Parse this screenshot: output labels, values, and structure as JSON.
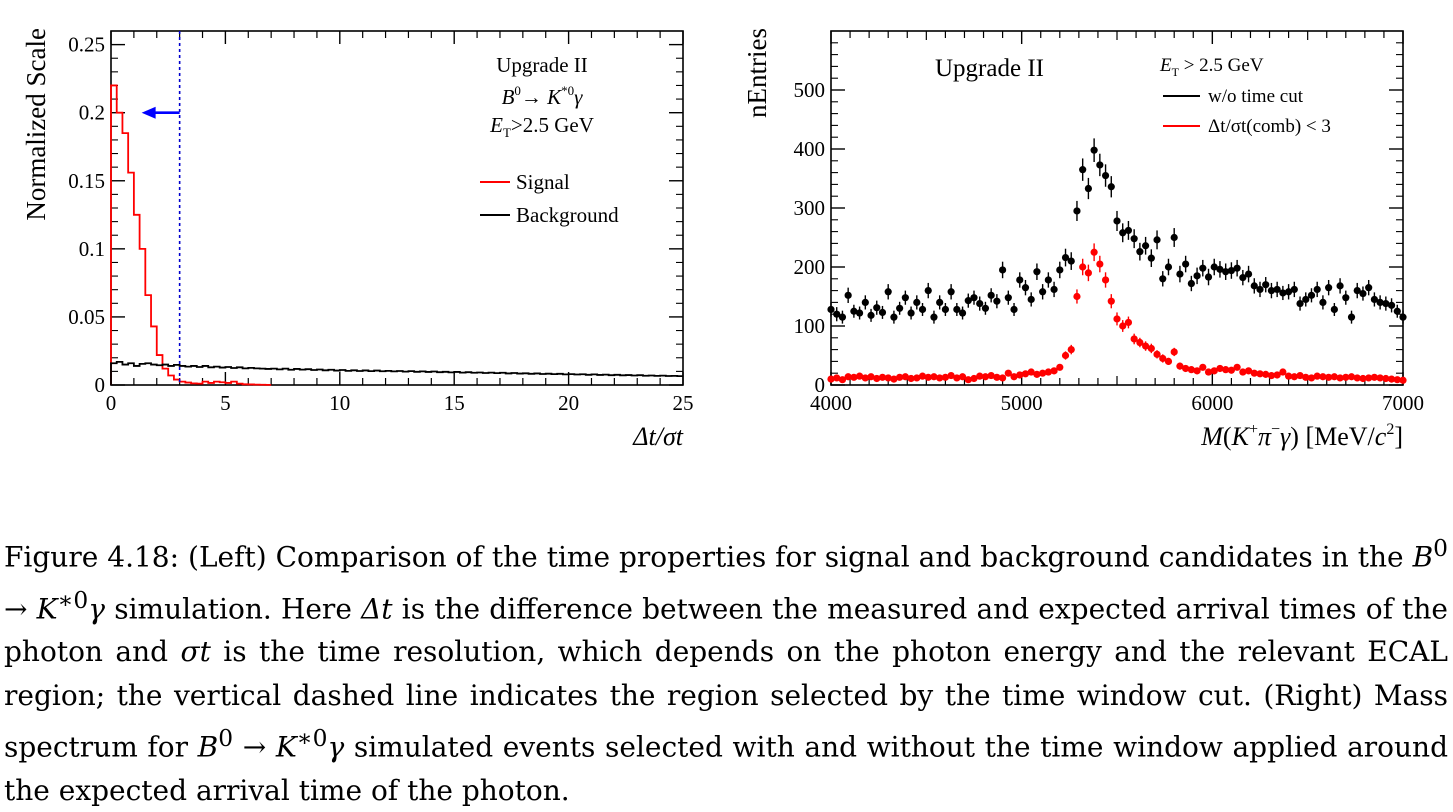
{
  "chart_data": [
    {
      "type": "histogram",
      "title": "",
      "annotations": {
        "line1": "Upgrade II",
        "line2_base": "B",
        "line2_sup": "0",
        "line2_arrow": "→ ",
        "line2_k": "K",
        "line2_ksup": "*0",
        "line2_gamma": "γ",
        "line3_base": "E",
        "line3_sub": "T",
        "line3_rest": ">2.5 GeV"
      },
      "xlabel": "Δt/σt",
      "ylabel": "Normalized Scale",
      "xlim": [
        0,
        25
      ],
      "ylim": [
        0,
        0.26
      ],
      "x_ticks": [
        0,
        5,
        10,
        15,
        20,
        25
      ],
      "x_tick_labels": [
        "0",
        "5",
        "10",
        "15",
        "20",
        "25"
      ],
      "y_ticks": [
        0,
        0.05,
        0.1,
        0.15,
        0.2,
        0.25
      ],
      "y_tick_labels": [
        "0",
        "0.05",
        "0.1",
        "0.15",
        "0.2",
        "0.25"
      ],
      "bin_width": 0.25,
      "cut_value": 3,
      "arrow_y": 0.2,
      "legend": [
        {
          "name": "Signal",
          "color": "#ff0000"
        },
        {
          "name": "Background",
          "color": "#000000"
        }
      ],
      "series": [
        {
          "name": "Signal",
          "color": "#ff0000",
          "values": [
            0.22,
            0.2,
            0.185,
            0.156,
            0.125,
            0.1,
            0.066,
            0.043,
            0.022,
            0.012,
            0.007,
            0.004,
            0.0025,
            0.0018,
            0.0012,
            0.001,
            0.0025,
            0.0015,
            0.0025,
            0.002,
            0.0015,
            0.0025,
            0.001,
            0.0005,
            0.0004,
            0.0003,
            0.0002,
            0.0001
          ]
        },
        {
          "name": "Background",
          "color": "#000000",
          "values": [
            0.016,
            0.017,
            0.015,
            0.016,
            0.014,
            0.0155,
            0.016,
            0.015,
            0.0145,
            0.015,
            0.014,
            0.0148,
            0.014,
            0.0135,
            0.014,
            0.0132,
            0.014,
            0.013,
            0.0135,
            0.0128,
            0.0132,
            0.0125,
            0.013,
            0.0122,
            0.0126,
            0.0122,
            0.012,
            0.0118,
            0.012,
            0.0115,
            0.012,
            0.0112,
            0.0118,
            0.0113,
            0.0116,
            0.011,
            0.0114,
            0.0108,
            0.0112,
            0.0106,
            0.011,
            0.0104,
            0.0108,
            0.0103,
            0.0107,
            0.0102,
            0.0106,
            0.0101,
            0.0104,
            0.01,
            0.0103,
            0.0098,
            0.0102,
            0.0097,
            0.01,
            0.0096,
            0.0099,
            0.0094,
            0.0097,
            0.0093,
            0.0096,
            0.0091,
            0.0094,
            0.009,
            0.0092,
            0.0088,
            0.0091,
            0.0087,
            0.009,
            0.0085,
            0.0088,
            0.0084,
            0.0086,
            0.0082,
            0.0085,
            0.0081,
            0.0083,
            0.008,
            0.0082,
            0.0078,
            0.008,
            0.0077,
            0.0079,
            0.0075,
            0.0078,
            0.0074,
            0.0076,
            0.0072,
            0.0075,
            0.0071,
            0.0073,
            0.007,
            0.0072,
            0.0068,
            0.007,
            0.0067,
            0.0069,
            0.0066,
            0.0067,
            0.0065
          ]
        }
      ]
    },
    {
      "type": "scatter",
      "title": "",
      "annotations": {
        "upgrade": "Upgrade II",
        "et_base": "E",
        "et_sub": "T",
        "et_rest": " > 2.5 GeV"
      },
      "xlabel_parts": {
        "m": "M",
        "open": "(",
        "k": "K",
        "kplus": "+",
        "pi": "π",
        "piminus": "−",
        "gamma": "γ",
        "close": ")",
        "units": " [MeV/",
        "c": "c",
        "csq": "2",
        "end": "]"
      },
      "ylabel": "nEntries",
      "xlim": [
        4000,
        7000
      ],
      "ylim": [
        0,
        600
      ],
      "x_ticks": [
        4000,
        5000,
        6000,
        7000
      ],
      "x_tick_labels": [
        "4000",
        "5000",
        "6000",
        "7000"
      ],
      "y_ticks": [
        0,
        100,
        200,
        300,
        400,
        500
      ],
      "y_tick_labels": [
        "0",
        "100",
        "200",
        "300",
        "400",
        "500"
      ],
      "legend": [
        {
          "name": "w/o time cut",
          "color": "#000000"
        },
        {
          "name": "Δt/σt(comb) < 3",
          "color": "#ff0000"
        }
      ],
      "x": [
        4000,
        4030,
        4060,
        4090,
        4120,
        4150,
        4180,
        4210,
        4240,
        4270,
        4300,
        4330,
        4360,
        4390,
        4420,
        4450,
        4480,
        4510,
        4540,
        4570,
        4600,
        4630,
        4660,
        4690,
        4720,
        4750,
        4780,
        4810,
        4840,
        4870,
        4900,
        4930,
        4960,
        4990,
        5020,
        5050,
        5080,
        5110,
        5140,
        5170,
        5200,
        5230,
        5260,
        5290,
        5320,
        5350,
        5380,
        5410,
        5440,
        5470,
        5500,
        5530,
        5560,
        5590,
        5620,
        5650,
        5680,
        5710,
        5740,
        5770,
        5800,
        5830,
        5860,
        5890,
        5920,
        5950,
        5980,
        6010,
        6040,
        6070,
        6100,
        6130,
        6160,
        6190,
        6220,
        6250,
        6280,
        6310,
        6340,
        6370,
        6400,
        6430,
        6460,
        6490,
        6520,
        6550,
        6580,
        6610,
        6640,
        6670,
        6700,
        6730,
        6760,
        6790,
        6820,
        6850,
        6880,
        6910,
        6940,
        6970,
        7000
      ],
      "series": [
        {
          "name": "w/o time cut",
          "color": "#000000",
          "values": [
            128,
            120,
            115,
            152,
            125,
            122,
            140,
            118,
            131,
            123,
            158,
            115,
            130,
            148,
            122,
            140,
            128,
            160,
            115,
            140,
            128,
            158,
            128,
            122,
            143,
            148,
            138,
            130,
            152,
            142,
            195,
            148,
            128,
            178,
            165,
            145,
            192,
            158,
            178,
            162,
            195,
            216,
            210,
            295,
            365,
            333,
            398,
            373,
            355,
            336,
            278,
            258,
            262,
            248,
            226,
            236,
            215,
            246,
            180,
            200,
            250,
            188,
            205,
            172,
            185,
            198,
            183,
            200,
            196,
            192,
            194,
            198,
            182,
            188,
            168,
            162,
            170,
            160,
            162,
            156,
            158,
            162,
            138,
            145,
            152,
            162,
            140,
            165,
            128,
            168,
            148,
            115,
            160,
            155,
            165,
            145,
            140,
            138,
            135,
            125,
            115
          ]
        },
        {
          "name": "Δt/σt(comb) < 3",
          "color": "#ff0000",
          "values": [
            10,
            12,
            9,
            14,
            13,
            15,
            12,
            14,
            11,
            13,
            12,
            10,
            13,
            14,
            11,
            12,
            15,
            13,
            14,
            12,
            13,
            16,
            12,
            14,
            9,
            11,
            15,
            14,
            16,
            13,
            12,
            20,
            14,
            17,
            19,
            22,
            18,
            20,
            22,
            24,
            30,
            50,
            60,
            150,
            200,
            190,
            225,
            205,
            178,
            142,
            112,
            100,
            106,
            78,
            72,
            66,
            62,
            52,
            45,
            40,
            56,
            32,
            28,
            26,
            24,
            30,
            22,
            24,
            28,
            26,
            25,
            30,
            22,
            24,
            20,
            19,
            18,
            16,
            17,
            22,
            15,
            14,
            16,
            13,
            12,
            15,
            14,
            13,
            14,
            12,
            13,
            14,
            12,
            11,
            12,
            13,
            12,
            11,
            10,
            9,
            8
          ]
        }
      ],
      "errors": [
        {
          "name": "w/o time cut",
          "values": [
            12,
            12,
            11,
            13,
            11,
            11,
            12,
            11,
            12,
            11,
            13,
            11,
            11,
            12,
            11,
            12,
            11,
            13,
            11,
            12,
            11,
            13,
            11,
            11,
            12,
            12,
            12,
            11,
            12,
            12,
            14,
            12,
            11,
            13,
            13,
            12,
            14,
            13,
            13,
            13,
            14,
            15,
            15,
            17,
            19,
            18,
            20,
            19,
            19,
            18,
            17,
            16,
            16,
            16,
            15,
            15,
            15,
            16,
            13,
            14,
            16,
            14,
            14,
            13,
            14,
            14,
            14,
            14,
            14,
            14,
            14,
            14,
            13,
            14,
            13,
            13,
            13,
            13,
            13,
            12,
            13,
            13,
            12,
            12,
            12,
            13,
            12,
            13,
            11,
            13,
            12,
            11,
            13,
            12,
            13,
            12,
            12,
            12,
            12,
            11,
            11
          ]
        },
        {
          "name": "Δt/σt(comb) < 3",
          "values": [
            3,
            3,
            3,
            4,
            4,
            4,
            3,
            4,
            3,
            4,
            3,
            3,
            4,
            4,
            3,
            3,
            4,
            4,
            4,
            3,
            4,
            4,
            3,
            4,
            3,
            3,
            4,
            4,
            4,
            4,
            3,
            4,
            4,
            4,
            4,
            5,
            4,
            4,
            5,
            5,
            5,
            7,
            8,
            12,
            14,
            14,
            15,
            14,
            13,
            12,
            11,
            10,
            10,
            9,
            8,
            8,
            8,
            7,
            7,
            6,
            7,
            6,
            5,
            5,
            5,
            5,
            5,
            5,
            5,
            5,
            5,
            5,
            5,
            5,
            4,
            4,
            4,
            4,
            4,
            5,
            4,
            4,
            4,
            4,
            3,
            4,
            4,
            4,
            4,
            3,
            4,
            4,
            3,
            3,
            3,
            4,
            3,
            3,
            3,
            3,
            3
          ]
        }
      ]
    }
  ],
  "caption": {
    "s1": "Figure 4.18: (Left) Comparison of the time properties for signal and background candidates in the ",
    "b0": "B",
    "b0sup": "0",
    "arrow": " → ",
    "k": "K",
    "ksup": "∗0",
    "gamma": "γ",
    "s2": " simulation. Here ",
    "dt": "Δt",
    "s3": " is the difference between the measured and expected arrival times of the photon and ",
    "st": "σt",
    "s4": " is the time resolution, which depends on the photon energy and the relevant ECAL region; the vertical dashed line indicates the region selected by the time window cut. (Right) Mass spectrum for ",
    "b0b": "B",
    "b0bsup": "0",
    "arrowb": " → ",
    "kb": "K",
    "kbsup": "∗0",
    "gammab": "γ",
    "s5": " simulated events selected with and without the time window applied around the expected arrival time of the photon."
  }
}
